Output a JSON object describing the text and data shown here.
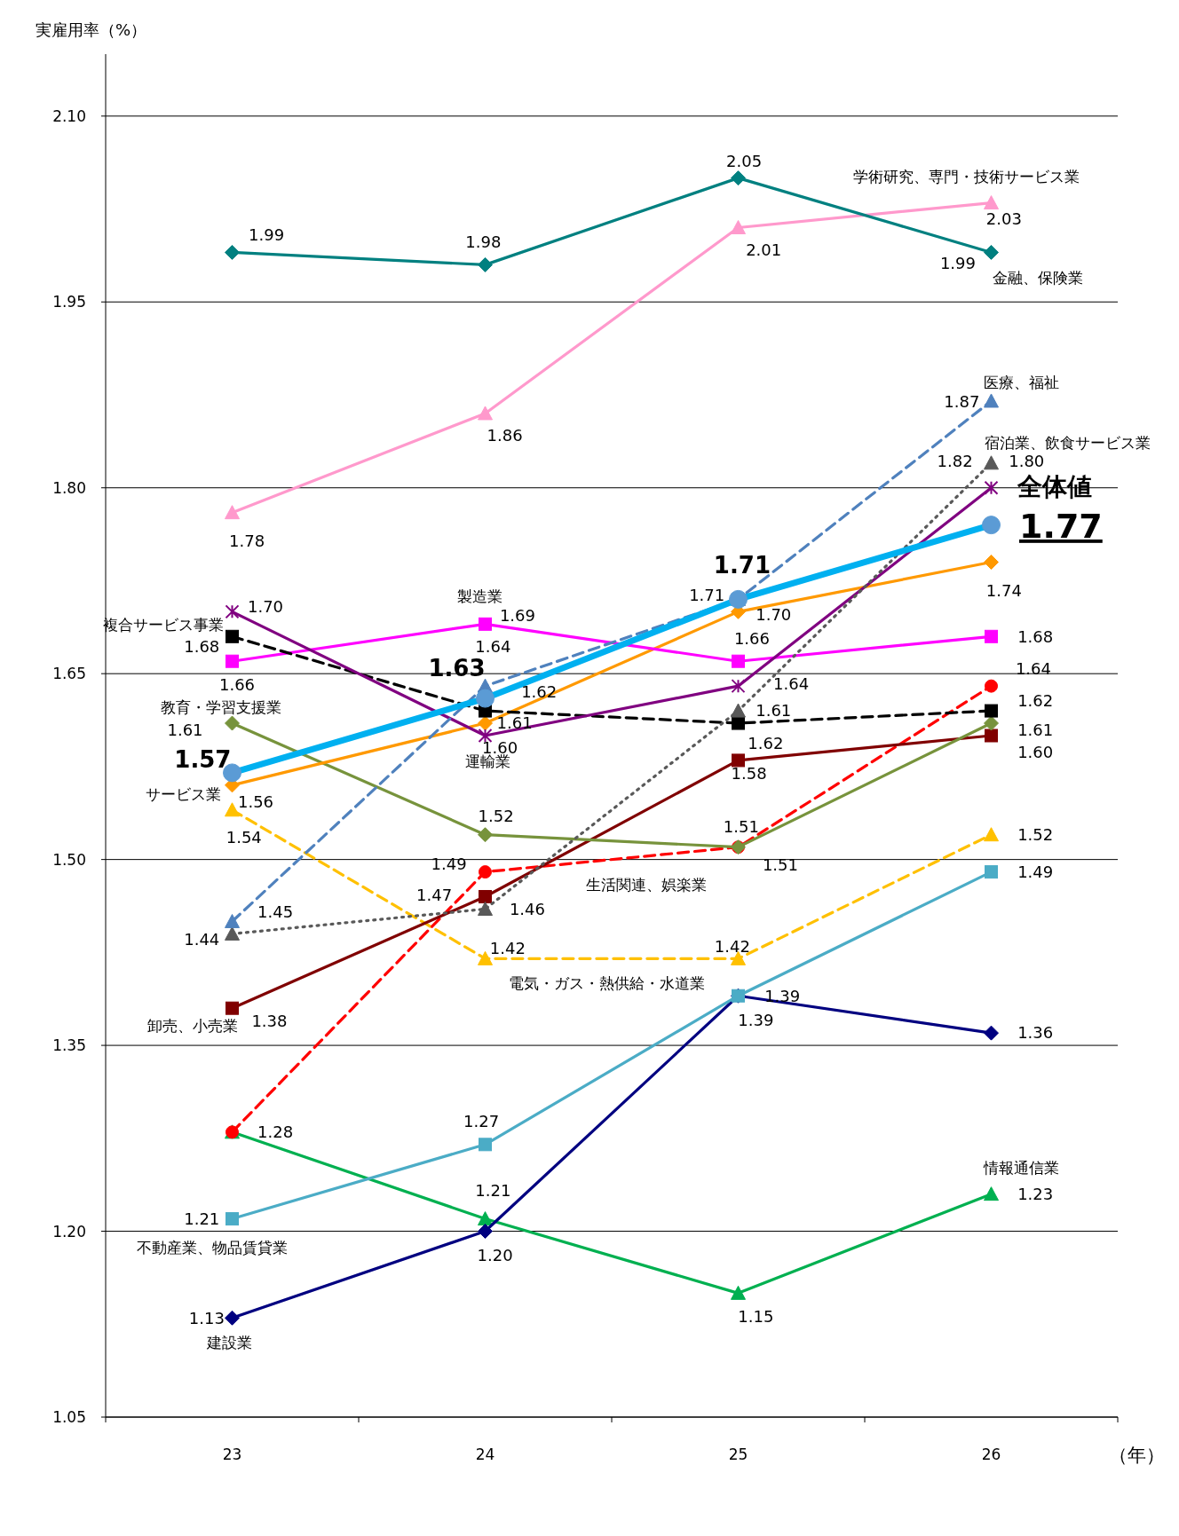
{
  "chart_data": {
    "type": "line",
    "xlabel": "（年）",
    "ylabel": "実雇用率（%）",
    "categories": [
      "23",
      "24",
      "25",
      "26"
    ],
    "ylim": [
      1.05,
      2.15
    ],
    "yticks": [
      {
        "value": 1.05,
        "label": "1.05"
      },
      {
        "value": 1.2,
        "label": "1.20"
      },
      {
        "value": 1.35,
        "label": "1.35"
      },
      {
        "value": 1.5,
        "label": "1.50"
      },
      {
        "value": 1.65,
        "label": "1.65"
      },
      {
        "value": 1.8,
        "label": "1.80"
      },
      {
        "value": 1.95,
        "label": "1.95"
      },
      {
        "value": 2.1,
        "label": "2.10"
      }
    ],
    "grid": "y",
    "series": [
      {
        "name": "全体値",
        "color": "#00b0f0",
        "marker": "circle",
        "line_style": "solid",
        "values": [
          1.57,
          1.63,
          1.71,
          1.77
        ],
        "value_labels": [
          "1.57",
          "1.63",
          "1.71",
          "1.77"
        ]
      },
      {
        "name": "金融、保険業",
        "color": "#008080",
        "marker": "diamond",
        "line_style": "solid",
        "values": [
          1.99,
          1.98,
          2.05,
          1.99
        ],
        "value_labels": [
          "1.99",
          "1.98",
          "2.05",
          "1.99"
        ]
      },
      {
        "name": "学術研究、専門・技術サービス業",
        "color": "#ff99cc",
        "marker": "triangle",
        "line_style": "solid",
        "values": [
          1.78,
          1.86,
          2.01,
          2.03
        ],
        "value_labels": [
          "1.78",
          "1.86",
          "2.01",
          "2.03"
        ]
      },
      {
        "name": "医療、福祉",
        "color": "#4f81bd",
        "marker": "triangle",
        "line_style": "dashed",
        "values": [
          1.45,
          1.64,
          1.71,
          1.87
        ],
        "value_labels": [
          "1.45",
          "1.64",
          "1.71",
          "1.87"
        ]
      },
      {
        "name": "宿泊業、飲食サービス業",
        "color": "#595959",
        "marker": "triangle",
        "line_style": "dotted",
        "values": [
          1.44,
          1.46,
          1.62,
          1.82
        ],
        "value_labels": [
          "1.44",
          "1.46",
          "1.62",
          "1.82"
        ]
      },
      {
        "name": "運輸業",
        "color": "#800080",
        "marker": "cross",
        "line_style": "solid",
        "values": [
          1.7,
          1.6,
          1.64,
          1.8
        ],
        "value_labels": [
          "1.70",
          "1.60",
          "1.64",
          "1.80"
        ]
      },
      {
        "name": "複合サービス事業",
        "color": "#000000",
        "marker": "square",
        "line_style": "dashed",
        "values": [
          1.68,
          1.62,
          1.61,
          1.62
        ],
        "value_labels": [
          "1.68",
          "1.62",
          "1.61",
          "1.62"
        ]
      },
      {
        "name": "製造業",
        "color": "#ff00ff",
        "marker": "square",
        "line_style": "solid",
        "values": [
          1.66,
          1.69,
          1.66,
          1.68
        ],
        "value_labels": [
          "1.66",
          "1.69",
          "1.66",
          "1.68"
        ]
      },
      {
        "name": "サービス業",
        "color": "#ff9900",
        "marker": "diamond",
        "line_style": "solid",
        "values": [
          1.56,
          1.61,
          1.7,
          1.74
        ],
        "value_labels": [
          "1.56",
          "1.61",
          "1.70",
          "1.74"
        ]
      },
      {
        "name": "教育・学習支援業",
        "color": "#77933c",
        "marker": "diamond",
        "line_style": "solid",
        "values": [
          1.61,
          1.52,
          1.51,
          1.61
        ],
        "value_labels": [
          "1.61",
          "1.52",
          "1.51",
          "1.61"
        ]
      },
      {
        "name": "卸売、小売業",
        "color": "#800000",
        "marker": "square",
        "line_style": "solid",
        "values": [
          1.38,
          1.47,
          1.58,
          1.6
        ],
        "value_labels": [
          "1.38",
          "1.47",
          "1.58",
          "1.60"
        ]
      },
      {
        "name": "生活関連、娯楽業",
        "color": "#ff0000",
        "marker": "circle",
        "line_style": "dashed",
        "values": [
          1.28,
          1.49,
          1.51,
          1.64
        ],
        "value_labels": [
          null,
          "1.49",
          "1.51",
          "1.64"
        ]
      },
      {
        "name": "電気・ガス・熱供給・水道業",
        "color": "#ffc000",
        "marker": "triangle",
        "line_style": "dashed",
        "values": [
          1.54,
          1.42,
          1.42,
          1.52
        ],
        "value_labels": [
          "1.54",
          "1.42",
          "1.42",
          "1.52"
        ]
      },
      {
        "name": "不動産業、物品賃貸業",
        "color": "#4bacc6",
        "marker": "square",
        "line_style": "solid",
        "values": [
          1.21,
          1.27,
          1.39,
          1.49
        ],
        "value_labels": [
          "1.21",
          "1.27",
          "1.39",
          "1.49"
        ]
      },
      {
        "name": "建設業",
        "color": "#000080",
        "marker": "diamond",
        "line_style": "solid",
        "values": [
          1.13,
          1.2,
          1.39,
          1.36
        ],
        "value_labels": [
          "1.13",
          "1.20",
          "1.39",
          "1.36"
        ]
      },
      {
        "name": "情報通信業",
        "color": "#00b050",
        "marker": "triangle",
        "line_style": "solid",
        "values": [
          1.28,
          1.21,
          1.15,
          1.23
        ],
        "value_labels": [
          "1.28",
          "1.21",
          "1.15",
          "1.23"
        ]
      }
    ]
  }
}
